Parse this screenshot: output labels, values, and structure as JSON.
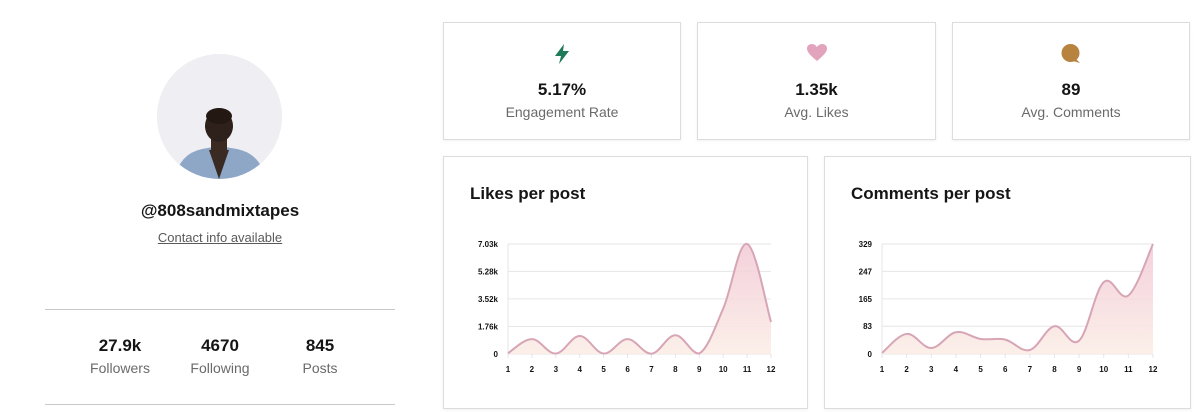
{
  "profile": {
    "handle": "@808sandmixtapes",
    "contact_link": "Contact info available",
    "avatar_alt": "profile photo",
    "stats": [
      {
        "value": "27.9k",
        "label": "Followers"
      },
      {
        "value": "4670",
        "label": "Following"
      },
      {
        "value": "845",
        "label": "Posts"
      }
    ]
  },
  "kpis": [
    {
      "icon": "lightning-icon",
      "value": "5.17%",
      "label": "Engagement Rate",
      "color": "#1e7a57"
    },
    {
      "icon": "heart-icon",
      "value": "1.35k",
      "label": "Avg. Likes",
      "color": "#e2a3bd"
    },
    {
      "icon": "comment-icon",
      "value": "89",
      "label": "Avg. Comments",
      "color": "#b8833f"
    }
  ],
  "colors": {
    "line": "#d7a5b5",
    "fill_top": "#f2c9d6",
    "fill_bottom": "#fbeee6",
    "grid": "#e6e6e6"
  },
  "chart_data": [
    {
      "type": "area",
      "title": "Likes per post",
      "xlabel": "",
      "ylabel": "",
      "x": [
        1,
        2,
        3,
        4,
        5,
        6,
        7,
        8,
        9,
        10,
        11,
        12
      ],
      "series": [
        {
          "name": "Likes",
          "values": [
            50,
            950,
            30,
            1150,
            30,
            950,
            20,
            1200,
            30,
            2900,
            7030,
            2050
          ]
        }
      ],
      "y_ticks": [
        "0",
        "1.76k",
        "3.52k",
        "5.28k",
        "7.03k"
      ],
      "y_tick_values": [
        0,
        1760,
        3520,
        5280,
        7030
      ],
      "ylim": [
        0,
        7030
      ],
      "grid": true,
      "legend": "none"
    },
    {
      "type": "area",
      "title": "Comments per post",
      "xlabel": "",
      "ylabel": "",
      "x": [
        1,
        2,
        3,
        4,
        5,
        6,
        7,
        8,
        9,
        10,
        11,
        12
      ],
      "series": [
        {
          "name": "Comments",
          "values": [
            3,
            60,
            18,
            65,
            45,
            43,
            12,
            83,
            40,
            215,
            175,
            329
          ]
        }
      ],
      "y_ticks": [
        "0",
        "83",
        "165",
        "247",
        "329"
      ],
      "y_tick_values": [
        0,
        83,
        165,
        247,
        329
      ],
      "ylim": [
        0,
        329
      ],
      "grid": true,
      "legend": "none"
    }
  ]
}
